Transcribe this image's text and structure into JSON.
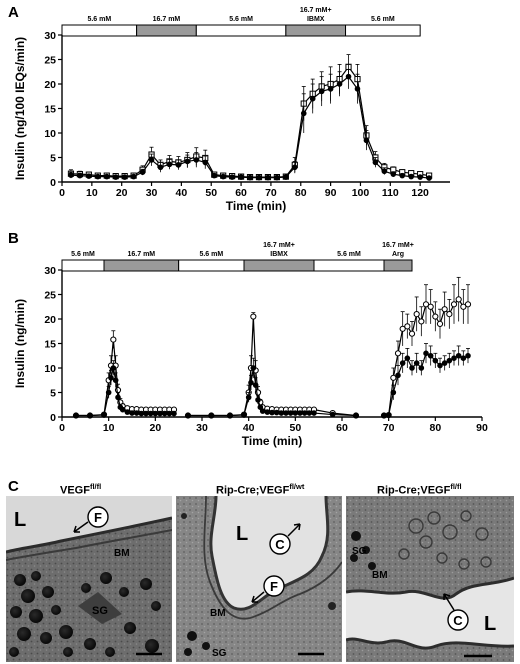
{
  "panel_labels": {
    "a": "A",
    "b": "B",
    "c": "C"
  },
  "colors": {
    "line": "#000000",
    "bar_fill": "#9a9a9a",
    "open_marker": "#ffffff",
    "filled_marker": "#000000"
  },
  "chart_data": [
    {
      "type": "line",
      "panel": "A",
      "xlabel": "Time (min)",
      "ylabel": "Insulin (ng/100 IEQs/min)",
      "xlim": [
        0,
        130
      ],
      "ylim": [
        0,
        30
      ],
      "xticks": [
        0,
        10,
        20,
        30,
        40,
        50,
        60,
        70,
        80,
        90,
        100,
        110,
        120
      ],
      "yticks": [
        0,
        5,
        10,
        15,
        20,
        25,
        30
      ],
      "grid": false,
      "protocol": [
        {
          "label": "5.6 mM",
          "start": 0,
          "end": 25,
          "fill": "white"
        },
        {
          "label": "16.7 mM",
          "start": 25,
          "end": 45,
          "fill": "gray"
        },
        {
          "label": "5.6 mM",
          "start": 45,
          "end": 75,
          "fill": "white"
        },
        {
          "label": "16.7 mM+\nIBMX",
          "start": 75,
          "end": 95,
          "fill": "gray"
        },
        {
          "label": "5.6 mM",
          "start": 95,
          "end": 120,
          "fill": "white"
        }
      ],
      "series": [
        {
          "marker": "open-square",
          "x": [
            3,
            6,
            9,
            12,
            15,
            18,
            21,
            24,
            27,
            30,
            33,
            36,
            39,
            42,
            45,
            48,
            51,
            54,
            57,
            60,
            63,
            66,
            69,
            72,
            75,
            78,
            81,
            84,
            87,
            90,
            93,
            96,
            99,
            102,
            105,
            108,
            111,
            114,
            117,
            120,
            123
          ],
          "values": [
            1.7,
            1.6,
            1.5,
            1.3,
            1.3,
            1.2,
            1.2,
            1.3,
            2.5,
            5.6,
            3.5,
            4.2,
            4.0,
            4.5,
            5.2,
            4.9,
            1.5,
            1.3,
            1.2,
            1.1,
            1.0,
            1.0,
            1.0,
            1.0,
            1.1,
            3.5,
            16,
            18,
            19.5,
            20,
            21,
            23.5,
            21,
            9.5,
            5,
            3,
            2.5,
            2,
            1.8,
            1.6,
            1.3
          ],
          "errors": [
            0.8,
            0.6,
            0.5,
            0.4,
            0.4,
            0.3,
            0.3,
            0.4,
            0.8,
            1.5,
            1.0,
            1.2,
            1.2,
            1.5,
            1.8,
            1.6,
            0.5,
            0.4,
            0.3,
            0.3,
            0.3,
            0.3,
            0.3,
            0.3,
            0.4,
            1.5,
            3.5,
            3.0,
            3.0,
            3.5,
            3.0,
            2.5,
            3.0,
            2.0,
            1.2,
            0.8,
            0.6,
            0.5,
            0.5,
            0.4,
            0.3
          ]
        },
        {
          "marker": "filled-circle",
          "x": [
            3,
            6,
            9,
            12,
            15,
            18,
            21,
            24,
            27,
            30,
            33,
            36,
            39,
            42,
            45,
            48,
            51,
            54,
            57,
            60,
            63,
            66,
            69,
            72,
            75,
            78,
            81,
            84,
            87,
            90,
            93,
            96,
            99,
            102,
            105,
            108,
            111,
            114,
            117,
            120,
            123
          ],
          "values": [
            1.4,
            1.3,
            1.2,
            1.1,
            1.1,
            1.0,
            1.0,
            1.1,
            2.0,
            4.5,
            3.0,
            3.6,
            3.5,
            4.2,
            4.5,
            4.0,
            1.3,
            1.1,
            1.0,
            1.0,
            0.9,
            0.9,
            0.9,
            0.9,
            1.0,
            3.0,
            14,
            17,
            18.5,
            19,
            20,
            21.5,
            19,
            8.5,
            4,
            2.2,
            1.6,
            1.3,
            1.1,
            1.0,
            0.8
          ],
          "errors": [
            0.6,
            0.5,
            0.4,
            0.3,
            0.3,
            0.3,
            0.3,
            0.3,
            0.6,
            1.2,
            1.0,
            1.0,
            1.0,
            1.3,
            1.5,
            1.3,
            0.4,
            0.3,
            0.3,
            0.3,
            0.3,
            0.3,
            0.3,
            0.3,
            0.3,
            1.2,
            4.0,
            3.0,
            3.0,
            3.0,
            2.5,
            2.5,
            3.0,
            2.0,
            1.0,
            0.7,
            0.5,
            0.4,
            0.4,
            0.3,
            0.3
          ]
        }
      ]
    },
    {
      "type": "line",
      "panel": "B",
      "xlabel": "Time (min)",
      "ylabel": "Insulin (ng/min)",
      "xlim": [
        0,
        90
      ],
      "ylim": [
        0,
        30
      ],
      "xticks": [
        0,
        10,
        20,
        30,
        40,
        50,
        60,
        70,
        80,
        90
      ],
      "yticks": [
        0,
        5,
        10,
        15,
        20,
        25,
        30
      ],
      "grid": false,
      "protocol": [
        {
          "label": "5.6 mM",
          "start": 0,
          "end": 9,
          "fill": "white"
        },
        {
          "label": "16.7 mM",
          "start": 9,
          "end": 25,
          "fill": "gray"
        },
        {
          "label": "5.6 mM",
          "start": 25,
          "end": 39,
          "fill": "white"
        },
        {
          "label": "16.7 mM+\nIBMX",
          "start": 39,
          "end": 54,
          "fill": "gray"
        },
        {
          "label": "5.6 mM",
          "start": 54,
          "end": 69,
          "fill": "white"
        },
        {
          "label": "16.7 mM+\nArg",
          "start": 69,
          "end": 75,
          "fill": "gray"
        }
      ],
      "series": [
        {
          "marker": "open-circle",
          "segments": [
            {
              "x": [
                3,
                6,
                9,
                10,
                10.5,
                11,
                11.5,
                12,
                12.5,
                13,
                14,
                15,
                16,
                17,
                18,
                19,
                20,
                21,
                22,
                23,
                24
              ],
              "values": [
                0.3,
                0.3,
                0.5,
                7.5,
                10.5,
                15.8,
                10.5,
                5.5,
                3.0,
                2.2,
                1.8,
                1.6,
                1.6,
                1.5,
                1.5,
                1.5,
                1.5,
                1.5,
                1.5,
                1.5,
                1.5
              ],
              "errors": [
                0.2,
                0.2,
                0.3,
                1.5,
                2.0,
                1.8,
                2.0,
                1.2,
                0.8,
                0.5,
                0.4,
                0.3,
                0.3,
                0.3,
                0.3,
                0.3,
                0.3,
                0.3,
                0.3,
                0.3,
                0.3
              ]
            },
            {
              "x": [
                27,
                32,
                36,
                39,
                40,
                40.5,
                41,
                41.5,
                42,
                42.5,
                43,
                44,
                45,
                46,
                47,
                48,
                49,
                50,
                51,
                52,
                53,
                54,
                58,
                63
              ],
              "values": [
                0.3,
                0.3,
                0.3,
                0.5,
                5.0,
                10.0,
                20.5,
                9.5,
                5.0,
                3.0,
                2.0,
                1.7,
                1.6,
                1.5,
                1.5,
                1.5,
                1.5,
                1.5,
                1.5,
                1.5,
                1.5,
                1.5,
                0.8,
                0.3
              ],
              "errors": [
                0.2,
                0.2,
                0.2,
                0.3,
                1.5,
                2.5,
                0.8,
                2.0,
                1.2,
                0.6,
                0.4,
                0.3,
                0.3,
                0.3,
                0.3,
                0.3,
                0.3,
                0.3,
                0.3,
                0.3,
                0.3,
                0.3,
                0.2,
                0.2
              ]
            },
            {
              "x": [
                69,
                70,
                71,
                72,
                73,
                74,
                75,
                76,
                77,
                78,
                79,
                80,
                81,
                82,
                83,
                84,
                85,
                86,
                87
              ],
              "values": [
                0.3,
                0.4,
                8,
                13,
                18,
                18.5,
                17,
                21,
                19.5,
                23,
                22.5,
                20.5,
                19,
                22,
                21,
                23,
                24,
                22.5,
                23
              ],
              "errors": [
                0.2,
                0.3,
                2.0,
                2.5,
                3.5,
                2.5,
                2.5,
                3.5,
                3.0,
                4.0,
                3.5,
                3.0,
                3.0,
                3.5,
                3.0,
                4.0,
                4.5,
                3.5,
                4.0
              ]
            }
          ]
        },
        {
          "marker": "filled-circle",
          "segments": [
            {
              "x": [
                3,
                6,
                9,
                10,
                10.5,
                11,
                11.5,
                12,
                12.5,
                13,
                14,
                15,
                16,
                17,
                18,
                19,
                20,
                21,
                22,
                23,
                24
              ],
              "values": [
                0.3,
                0.3,
                0.4,
                5.0,
                8.0,
                10.0,
                7.5,
                4.0,
                2.0,
                1.5,
                1.0,
                0.8,
                0.8,
                0.7,
                0.7,
                0.7,
                0.7,
                0.7,
                0.7,
                0.7,
                0.7
              ],
              "errors": [
                0.2,
                0.2,
                0.2,
                1.2,
                1.5,
                1.5,
                1.5,
                1.0,
                0.6,
                0.4,
                0.3,
                0.2,
                0.2,
                0.2,
                0.2,
                0.2,
                0.2,
                0.2,
                0.2,
                0.2,
                0.2
              ]
            },
            {
              "x": [
                27,
                32,
                36,
                39,
                40,
                40.5,
                41,
                41.5,
                42,
                42.5,
                43,
                44,
                45,
                46,
                47,
                48,
                49,
                50,
                51,
                52,
                53,
                54,
                58,
                63
              ],
              "values": [
                0.3,
                0.3,
                0.3,
                0.4,
                4.0,
                7.0,
                10.0,
                6.5,
                3.5,
                2.0,
                1.2,
                1.0,
                0.9,
                0.9,
                0.8,
                0.8,
                0.8,
                0.8,
                0.8,
                0.8,
                0.8,
                0.8,
                0.5,
                0.3
              ],
              "errors": [
                0.2,
                0.2,
                0.2,
                0.2,
                1.0,
                1.5,
                2.0,
                1.5,
                0.8,
                0.4,
                0.3,
                0.2,
                0.2,
                0.2,
                0.2,
                0.2,
                0.2,
                0.2,
                0.2,
                0.2,
                0.2,
                0.2,
                0.2,
                0.2
              ]
            },
            {
              "x": [
                69,
                70,
                71,
                72,
                73,
                74,
                75,
                76,
                77,
                78,
                79,
                80,
                81,
                82,
                83,
                84,
                85,
                86,
                87
              ],
              "values": [
                0.3,
                0.4,
                5,
                8.5,
                11,
                12,
                10,
                11,
                10,
                13,
                12.5,
                11.5,
                10.5,
                11,
                11.5,
                12,
                12.5,
                12,
                12.5
              ],
              "errors": [
                0.2,
                0.3,
                1.5,
                2.0,
                2.0,
                2.0,
                1.5,
                2.0,
                1.5,
                2.0,
                2.0,
                1.5,
                1.5,
                1.5,
                1.5,
                1.5,
                2.0,
                1.5,
                1.5
              ]
            }
          ]
        }
      ]
    }
  ],
  "micrographs": [
    {
      "title": "VEGF",
      "title_sup": "fl/fl",
      "labels": {
        "lumen": "L",
        "fenestra": "F",
        "basement_membrane": "BM",
        "granules": "SG"
      }
    },
    {
      "title": "Rip-Cre;VEGF",
      "title_sup": "fl/wt",
      "labels": {
        "lumen": "L",
        "caveolae": "C",
        "fenestra": "F",
        "basement_membrane": "BM",
        "granules": "SG"
      }
    },
    {
      "title": "Rip-Cre;VEGF",
      "title_sup": "fl/fl",
      "labels": {
        "lumen": "L",
        "caveolae": "C",
        "basement_membrane": "BM",
        "granules": "SG"
      }
    }
  ]
}
